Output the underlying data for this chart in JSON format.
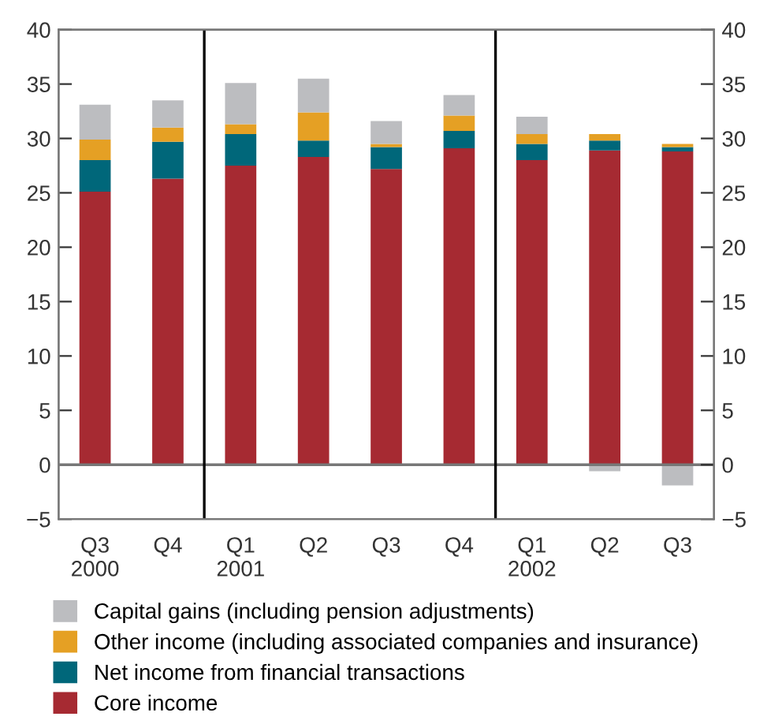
{
  "chart_data": {
    "type": "bar",
    "stacked": true,
    "categories": [
      "Q3\n2000",
      "Q4",
      "Q1\n2001",
      "Q2",
      "Q3",
      "Q4",
      "Q1\n2002",
      "Q2",
      "Q3"
    ],
    "series": [
      {
        "name": "Core income",
        "color": "#a62a32",
        "values": [
          25.1,
          26.3,
          27.5,
          28.3,
          27.2,
          29.1,
          28.0,
          28.9,
          28.8
        ]
      },
      {
        "name": "Net income from financial transactions",
        "color": "#00677a",
        "values": [
          2.9,
          3.4,
          2.9,
          1.5,
          2.0,
          1.6,
          1.5,
          0.9,
          0.4
        ]
      },
      {
        "name": "Other income (including associated companies and insurance)",
        "color": "#e5a024",
        "values": [
          1.9,
          1.3,
          0.9,
          2.6,
          0.3,
          1.4,
          0.9,
          0.6,
          0.3
        ]
      },
      {
        "name": "Capital gains (including pension adjustments)",
        "color": "#bcbdc0",
        "values": [
          3.2,
          2.5,
          3.8,
          3.1,
          2.1,
          1.9,
          1.6,
          -0.6,
          -1.9
        ]
      }
    ],
    "ylim": [
      -5,
      40
    ],
    "yticks": [
      -5,
      0,
      5,
      10,
      15,
      20,
      25,
      30,
      35,
      40
    ],
    "y2lim": [
      -5,
      40
    ],
    "y2ticks": [
      -5,
      0,
      5,
      10,
      15,
      20,
      25,
      30,
      35,
      40
    ],
    "ref_lines": [
      {
        "axis": "y",
        "value": 0,
        "color": "#777777"
      }
    ],
    "legend": "bottom",
    "grid": false
  }
}
